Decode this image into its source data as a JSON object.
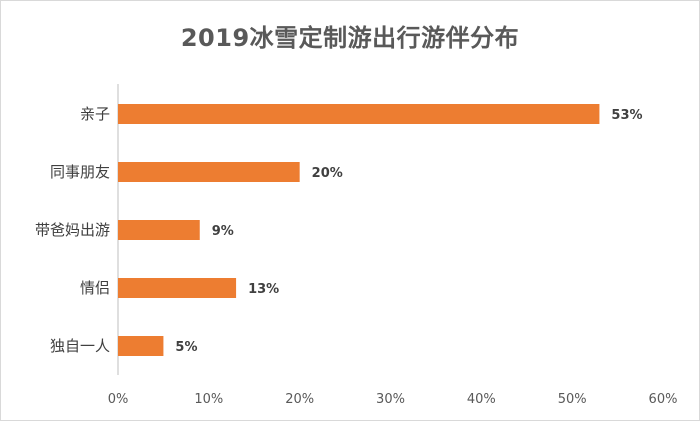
{
  "chart_data": {
    "type": "bar",
    "orientation": "horizontal",
    "title": "2019冰雪定制游出行游伴分布",
    "categories": [
      "亲子",
      "同事朋友",
      "带爸妈出游",
      "情侣",
      "独自一人"
    ],
    "values": [
      53,
      20,
      9,
      13,
      5
    ],
    "value_labels": [
      "53%",
      "20%",
      "9%",
      "13%",
      "5%"
    ],
    "xlim": [
      0,
      60
    ],
    "x_ticks": [
      "0%",
      "10%",
      "20%",
      "30%",
      "40%",
      "50%",
      "60%"
    ],
    "bar_color": "#ED7D31",
    "grid": false,
    "legend": "none"
  }
}
